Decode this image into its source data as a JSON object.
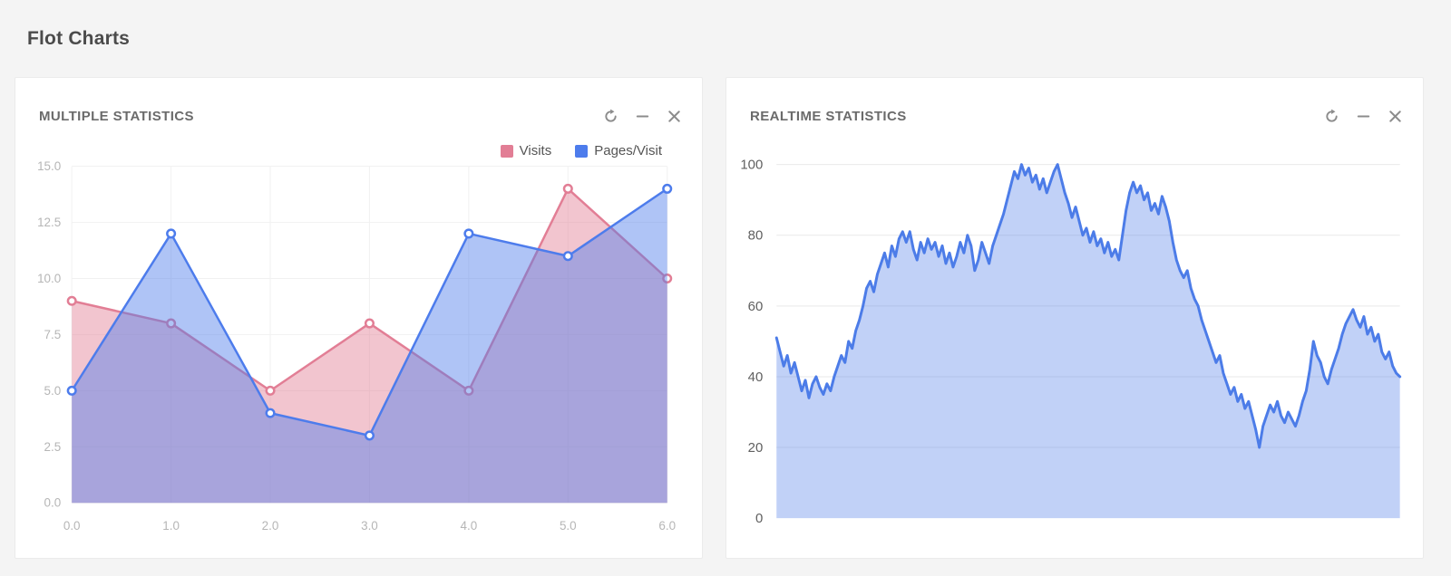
{
  "page": {
    "title": "Flot Charts"
  },
  "panels": {
    "multiple": {
      "title": "MULTIPLE STATISTICS"
    },
    "realtime": {
      "title": "REALTIME STATISTICS"
    }
  },
  "actions": {
    "refresh": "refresh",
    "collapse": "collapse",
    "close": "close"
  },
  "colors": {
    "visits": "#e27e95",
    "pages_visit": "#4d7cec",
    "realtime_line": "#4c7ce8",
    "grid_light": "#f1f1f1",
    "grid_medium": "#e9e9e9",
    "tick_light": "#b6b6b6",
    "tick_dark": "#606060",
    "icon": "#8c8c8c"
  },
  "chart_data": [
    {
      "id": "multiple",
      "type": "area",
      "title": "MULTIPLE STATISTICS",
      "x": [
        0,
        1,
        2,
        3,
        4,
        5,
        6
      ],
      "x_tick_labels": [
        "0.0",
        "1.0",
        "2.0",
        "3.0",
        "4.0",
        "5.0",
        "6.0"
      ],
      "y_ticks": [
        0,
        2.5,
        5,
        7.5,
        10,
        12.5,
        15
      ],
      "y_tick_labels": [
        "0.0",
        "2.5",
        "5.0",
        "7.5",
        "10.0",
        "12.5",
        "15.0"
      ],
      "ylim": [
        0,
        15
      ],
      "grid": "both",
      "legend_position": "top-right",
      "markers": "hollow-circle",
      "series": [
        {
          "name": "Visits",
          "color": "#e27e95",
          "fill_opacity": 0.45,
          "values": [
            9,
            8,
            5,
            8,
            5,
            14,
            10
          ]
        },
        {
          "name": "Pages/Visit",
          "color": "#4d7cec",
          "fill_opacity": 0.45,
          "values": [
            5,
            12,
            4,
            3,
            12,
            11,
            14
          ]
        }
      ]
    },
    {
      "id": "realtime",
      "type": "area",
      "title": "REALTIME STATISTICS",
      "ylim": [
        0,
        100
      ],
      "y_ticks": [
        0,
        20,
        40,
        60,
        80,
        100
      ],
      "y_tick_labels": [
        "0",
        "20",
        "40",
        "60",
        "80",
        "100"
      ],
      "grid": "horizontal",
      "legend_position": "none",
      "series": [
        {
          "name": "realtime",
          "color": "#4c7ce8",
          "fill_opacity": 0.35,
          "line_width": 3,
          "values": [
            51,
            47,
            43,
            46,
            41,
            44,
            40,
            36,
            39,
            34,
            38,
            40,
            37,
            35,
            38,
            36,
            40,
            43,
            46,
            44,
            50,
            48,
            53,
            56,
            60,
            65,
            67,
            64,
            69,
            72,
            75,
            71,
            77,
            74,
            79,
            81,
            78,
            81,
            76,
            73,
            78,
            75,
            79,
            76,
            78,
            74,
            77,
            72,
            75,
            71,
            74,
            78,
            75,
            80,
            77,
            70,
            73,
            78,
            75,
            72,
            77,
            80,
            83,
            86,
            90,
            94,
            98,
            96,
            100,
            97,
            99,
            95,
            97,
            93,
            96,
            92,
            95,
            98,
            100,
            96,
            92,
            89,
            85,
            88,
            84,
            80,
            82,
            78,
            81,
            77,
            79,
            75,
            78,
            74,
            76,
            73,
            80,
            87,
            92,
            95,
            92,
            94,
            90,
            92,
            87,
            89,
            86,
            91,
            88,
            84,
            78,
            73,
            70,
            68,
            70,
            65,
            62,
            60,
            56,
            53,
            50,
            47,
            44,
            46,
            41,
            38,
            35,
            37,
            33,
            35,
            31,
            33,
            29,
            25,
            20,
            26,
            29,
            32,
            30,
            33,
            29,
            27,
            30,
            28,
            26,
            29,
            33,
            36,
            42,
            50,
            46,
            44,
            40,
            38,
            42,
            45,
            48,
            52,
            55,
            57,
            59,
            56,
            54,
            57,
            52,
            54,
            50,
            52,
            47,
            45,
            47,
            43,
            41,
            40
          ]
        }
      ]
    }
  ]
}
